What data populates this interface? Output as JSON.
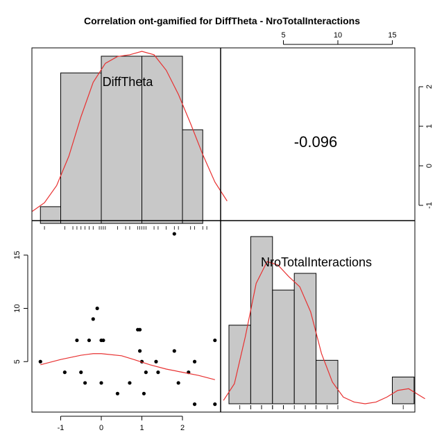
{
  "chart_data": {
    "type": "pairs",
    "title": "Correlation ont-gamified for DiffTheta - NroTotalInteractions",
    "variables": [
      "DiffTheta",
      "NroTotalInteractions"
    ],
    "correlation": {
      "label": "-0.096",
      "value": -0.096
    },
    "histograms": {
      "DiffTheta": {
        "breaks": [
          -1.5,
          -1.0,
          -0.5,
          0.0,
          0.5,
          1.0,
          1.5,
          2.0,
          2.5,
          3.0
        ],
        "bins": [
          {
            "from": -1.5,
            "to": -1.0,
            "height": 0.1
          },
          {
            "from": -1.0,
            "to": 0.0,
            "height": 0.9
          },
          {
            "from": 0.0,
            "to": 1.0,
            "height": 1.0
          },
          {
            "from": 1.0,
            "to": 2.0,
            "height": 1.0
          },
          {
            "from": 2.0,
            "to": 2.5,
            "height": 0.56
          }
        ],
        "density_curve": [
          [
            -1.7,
            0.07
          ],
          [
            -1.4,
            0.12
          ],
          [
            -1.1,
            0.22
          ],
          [
            -0.8,
            0.39
          ],
          [
            -0.5,
            0.62
          ],
          [
            -0.2,
            0.82
          ],
          [
            0.1,
            0.93
          ],
          [
            0.4,
            0.97
          ],
          [
            0.7,
            0.98
          ],
          [
            1.0,
            1.0
          ],
          [
            1.3,
            0.98
          ],
          [
            1.6,
            0.89
          ],
          [
            1.9,
            0.75
          ],
          [
            2.2,
            0.58
          ],
          [
            2.5,
            0.4
          ],
          [
            2.8,
            0.24
          ],
          [
            3.1,
            0.13
          ]
        ]
      },
      "NroTotalInteractions": {
        "bins": [
          {
            "from": 0,
            "to": 2,
            "height": 0.47
          },
          {
            "from": 2,
            "to": 4,
            "height": 1.0
          },
          {
            "from": 4,
            "to": 6,
            "height": 0.68
          },
          {
            "from": 6,
            "to": 8,
            "height": 0.78
          },
          {
            "from": 8,
            "to": 10,
            "height": 0.26
          },
          {
            "from": 15,
            "to": 17,
            "height": 0.16
          }
        ],
        "density_curve": [
          [
            -0.5,
            0.02
          ],
          [
            0.5,
            0.12
          ],
          [
            1.5,
            0.4
          ],
          [
            2.5,
            0.72
          ],
          [
            3.5,
            0.85
          ],
          [
            4.5,
            0.83
          ],
          [
            5.5,
            0.76
          ],
          [
            6.5,
            0.7
          ],
          [
            7.5,
            0.55
          ],
          [
            8.5,
            0.3
          ],
          [
            9.5,
            0.13
          ],
          [
            10.5,
            0.04
          ],
          [
            11.5,
            0.01
          ],
          [
            12.5,
            0.0
          ],
          [
            13.5,
            0.01
          ],
          [
            14.5,
            0.04
          ],
          [
            15.5,
            0.08
          ],
          [
            16.5,
            0.09
          ],
          [
            17.5,
            0.05
          ],
          [
            18.0,
            0.03
          ]
        ]
      }
    },
    "rug": {
      "DiffTheta": [
        -1.4,
        -0.9,
        -0.7,
        -0.6,
        -0.5,
        -0.4,
        -0.3,
        -0.2,
        -0.05,
        0.0,
        0.05,
        0.1,
        0.4,
        0.6,
        0.7,
        0.9,
        0.95,
        1.0,
        1.05,
        1.1,
        1.3,
        1.4,
        1.6,
        1.8,
        1.9,
        2.2,
        2.3,
        2.5,
        2.6
      ],
      "NroTotalInteractions": [
        1,
        2,
        2,
        3,
        3,
        3,
        4,
        4,
        4,
        5,
        5,
        5,
        6,
        7,
        7,
        7,
        7,
        8,
        8,
        9,
        10,
        16
      ]
    },
    "scatter": {
      "xlabel": "DiffTheta",
      "ylabel": "NroTotalInteractions",
      "points": [
        [
          -1.5,
          5
        ],
        [
          -0.9,
          4
        ],
        [
          -0.6,
          7
        ],
        [
          -0.5,
          4
        ],
        [
          -0.4,
          3
        ],
        [
          -0.3,
          7
        ],
        [
          -0.2,
          9
        ],
        [
          -0.1,
          10
        ],
        [
          0.0,
          3
        ],
        [
          0.0,
          7
        ],
        [
          0.05,
          7
        ],
        [
          0.4,
          2
        ],
        [
          0.7,
          3
        ],
        [
          0.9,
          8
        ],
        [
          0.95,
          8
        ],
        [
          0.95,
          6
        ],
        [
          1.0,
          5
        ],
        [
          1.05,
          2
        ],
        [
          1.1,
          4
        ],
        [
          1.35,
          5
        ],
        [
          1.4,
          4
        ],
        [
          1.8,
          6
        ],
        [
          1.8,
          17
        ],
        [
          1.9,
          3
        ],
        [
          2.15,
          4
        ],
        [
          2.3,
          5
        ],
        [
          2.3,
          1
        ],
        [
          2.8,
          7
        ],
        [
          2.8,
          1
        ]
      ],
      "loess_curve": [
        [
          -1.5,
          4.7
        ],
        [
          -1.0,
          5.2
        ],
        [
          -0.5,
          5.6
        ],
        [
          -0.2,
          5.75
        ],
        [
          0.0,
          5.75
        ],
        [
          0.5,
          5.55
        ],
        [
          0.8,
          5.2
        ],
        [
          1.2,
          4.7
        ],
        [
          1.6,
          4.3
        ],
        [
          2.0,
          4.0
        ],
        [
          2.4,
          3.7
        ],
        [
          2.8,
          3.3
        ]
      ]
    },
    "axes": {
      "bottom_x": {
        "ticks": [
          "-1",
          "0",
          "1",
          "2"
        ],
        "values": [
          -1,
          0,
          1,
          2
        ]
      },
      "left_y": {
        "ticks": [
          "5",
          "10",
          "15"
        ],
        "values": [
          5,
          10,
          15
        ]
      },
      "top_x": {
        "ticks": [
          "5",
          "10",
          "15"
        ],
        "values": [
          5,
          10,
          15
        ]
      },
      "right_y": {
        "ticks": [
          "-1",
          "0",
          "1",
          "2"
        ],
        "values": [
          -1,
          0,
          1,
          2
        ]
      }
    },
    "colors": {
      "bar_fill": "#c8c8c8",
      "bar_stroke": "#000000",
      "curve": "#e83030",
      "points": "#000000"
    }
  }
}
